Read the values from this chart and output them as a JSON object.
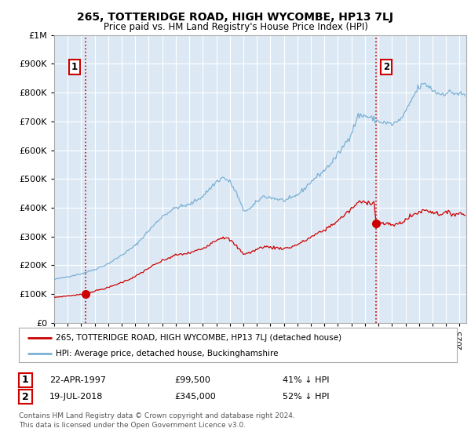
{
  "title": "265, TOTTERIDGE ROAD, HIGH WYCOMBE, HP13 7LJ",
  "subtitle": "Price paid vs. HM Land Registry's House Price Index (HPI)",
  "hpi_label": "HPI: Average price, detached house, Buckinghamshire",
  "price_label": "265, TOTTERIDGE ROAD, HIGH WYCOMBE, HP13 7LJ (detached house)",
  "transaction1_date": "22-APR-1997",
  "transaction1_price": 99500,
  "transaction1_hpi": "41% ↓ HPI",
  "transaction2_date": "19-JUL-2018",
  "transaction2_price": 345000,
  "transaction2_hpi": "52% ↓ HPI",
  "footnote": "Contains HM Land Registry data © Crown copyright and database right 2024.\nThis data is licensed under the Open Government Licence v3.0.",
  "background_color": "#ffffff",
  "plot_bg_color": "#dce9f5",
  "grid_color": "#ffffff",
  "hpi_color": "#7ab0d4",
  "price_color": "#cc0000",
  "vline_color": "#cc0000",
  "marker_color": "#cc0000",
  "ylim": [
    0,
    1000000
  ],
  "xlim_start": 1995.0,
  "xlim_end": 2025.5,
  "sale1_x": 1997.3,
  "sale1_y": 99500,
  "sale2_x": 2018.8,
  "sale2_y": 345000
}
